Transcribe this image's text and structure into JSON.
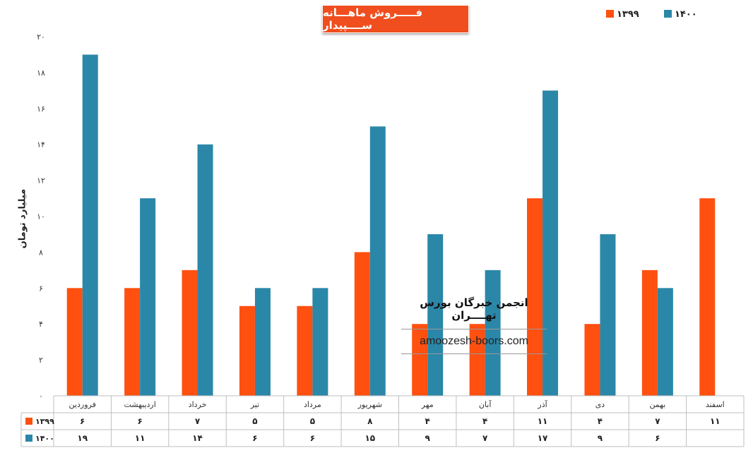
{
  "chart_data": {
    "type": "bar",
    "title": "فـــــروش ماهـــانه ســــپیدار",
    "ylabel": "میلیارد تومان",
    "ylim": [
      0,
      20
    ],
    "yticks": [
      "۰",
      "۲",
      "۴",
      "۶",
      "۸",
      "۱۰",
      "۱۲",
      "۱۴",
      "۱۶",
      "۱۸",
      "۲۰"
    ],
    "categories": [
      "فروردین",
      "اردیبهشت",
      "خرداد",
      "تیر",
      "مرداد",
      "شهریور",
      "مهر",
      "آبان",
      "آذر",
      "دی",
      "بهمن",
      "اسفند"
    ],
    "series": [
      {
        "name": "۱۳۹۹",
        "color": "#ff5010",
        "values": [
          6,
          6,
          7,
          5,
          5,
          8,
          4,
          4,
          11,
          4,
          7,
          11
        ],
        "labels": [
          "۶",
          "۶",
          "۷",
          "۵",
          "۵",
          "۸",
          "۴",
          "۴",
          "۱۱",
          "۴",
          "۷",
          "۱۱"
        ]
      },
      {
        "name": "۱۴۰۰",
        "color": "#2b87a8",
        "values": [
          19,
          11,
          14,
          6,
          6,
          15,
          9,
          7,
          17,
          9,
          6,
          null
        ],
        "labels": [
          "۱۹",
          "۱۱",
          "۱۴",
          "۶",
          "۶",
          "۱۵",
          "۹",
          "۷",
          "۱۷",
          "۹",
          "۶",
          ""
        ]
      }
    ],
    "grid": false,
    "legend": "top-right",
    "data_table": true
  },
  "watermark": {
    "title": "انجمن خبرگان بورس تهــــران",
    "url": "amoozesh-boors.com"
  }
}
